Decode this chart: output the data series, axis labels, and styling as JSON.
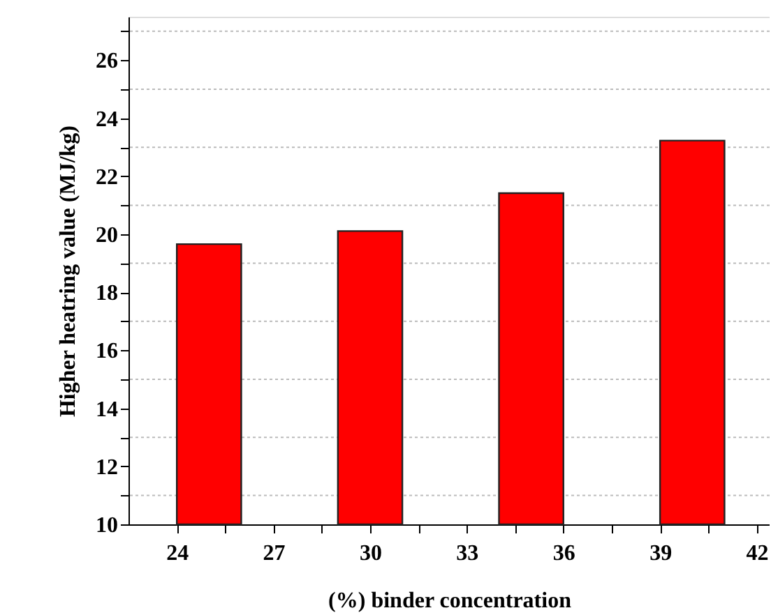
{
  "chart_data": {
    "type": "bar",
    "xlabel": "(%) binder concentration",
    "ylabel": "Higher heatring value (MJ/kg)",
    "x": [
      25,
      30,
      35,
      40
    ],
    "values": [
      19.66,
      20.11,
      21.42,
      23.23
    ],
    "color": "#ff0000",
    "xlim": [
      22.5,
      42.4
    ],
    "xticks": [
      24,
      {
        "value": 25.5,
        "label": null
      },
      27,
      {
        "value": 28.5,
        "label": null
      },
      30,
      {
        "value": 31.5,
        "label": null
      },
      33,
      {
        "value": 34.5,
        "label": null
      },
      36,
      {
        "value": 37.5,
        "label": null
      },
      39,
      {
        "value": 40.5,
        "label": null
      },
      42
    ],
    "ylim": [
      10,
      27.5
    ],
    "yticks": [
      10,
      {
        "value": 11,
        "label": null
      },
      12,
      {
        "value": 13,
        "label": null
      },
      14,
      {
        "value": 15,
        "label": null
      },
      16,
      {
        "value": 17,
        "label": null
      },
      18,
      {
        "value": 19,
        "label": null
      },
      20,
      {
        "value": 21,
        "label": null
      },
      22,
      {
        "value": 23,
        "label": null
      },
      24,
      {
        "value": 25,
        "label": null
      },
      26,
      {
        "value": 27,
        "label": null
      }
    ],
    "grid": "y"
  }
}
